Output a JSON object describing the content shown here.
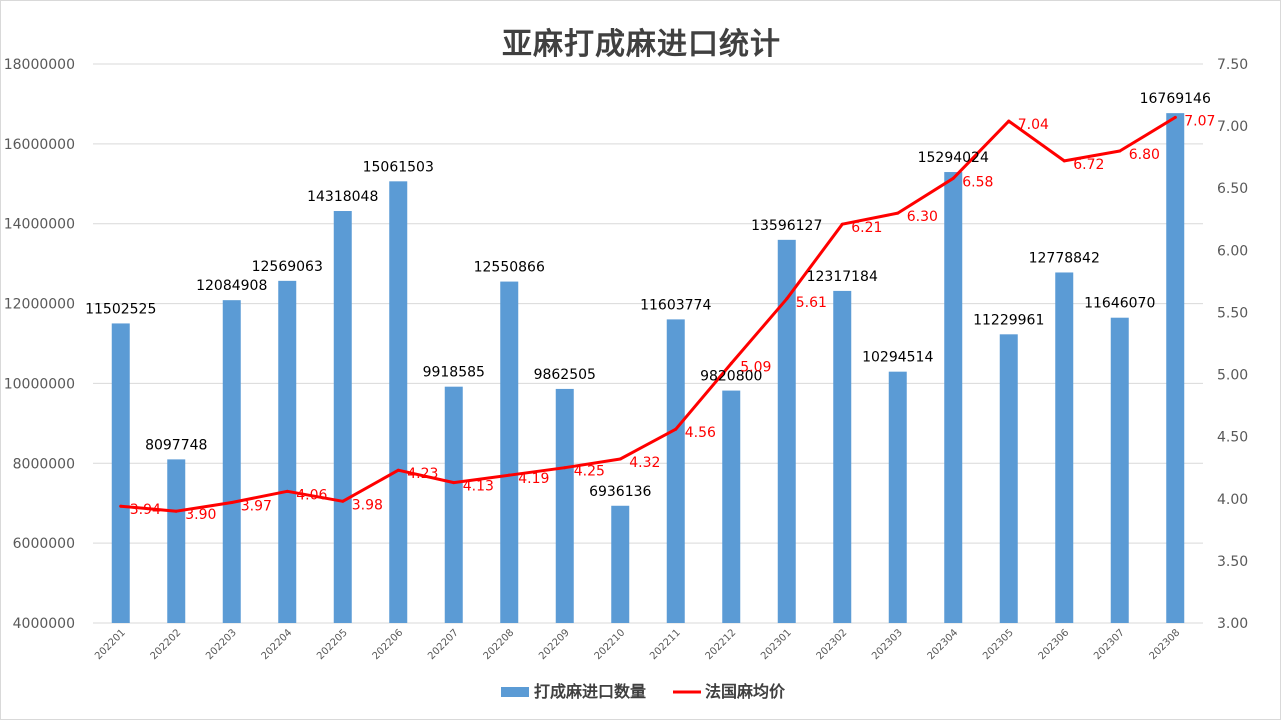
{
  "chart_data": {
    "type": "bar",
    "title": "亚麻打成麻进口统计",
    "categories": [
      "202201",
      "202202",
      "202203",
      "202204",
      "202205",
      "202206",
      "202207",
      "202208",
      "202209",
      "202210",
      "202211",
      "202212",
      "202301",
      "202302",
      "202303",
      "202304",
      "202305",
      "202306",
      "202307",
      "202308"
    ],
    "series": [
      {
        "name": "打成麻进口数量",
        "type": "bar",
        "axis": "left",
        "color": "#5b9bd5",
        "values": [
          11502525,
          8097748,
          12084908,
          12569063,
          14318048,
          15061503,
          9918585,
          12550866,
          9862505,
          6936136,
          11603774,
          9820800,
          13596127,
          12317184,
          10294514,
          15294024,
          11229961,
          12778842,
          11646070,
          16769146
        ],
        "labels": [
          "11502525",
          "8097748",
          "12084908",
          "12569063",
          "14318048",
          "15061503",
          "9918585",
          "12550866",
          "9862505",
          "6936136",
          "11603774",
          "9820800",
          "13596127",
          "12317184",
          "10294514",
          "15294024",
          "11229961",
          "12778842",
          "11646070",
          "16769146"
        ]
      },
      {
        "name": "法国麻均价",
        "type": "line",
        "axis": "right",
        "color": "#ff0000",
        "values": [
          3.94,
          3.9,
          3.97,
          4.06,
          3.98,
          4.23,
          4.13,
          4.19,
          4.25,
          4.32,
          4.56,
          5.09,
          5.61,
          6.21,
          6.3,
          6.58,
          7.04,
          6.72,
          6.8,
          7.07
        ],
        "labels": [
          "3.94",
          "3.90",
          "3.97",
          "4.06",
          "3.98",
          "4.23",
          "4.13",
          "4.19",
          "4.25",
          "4.32",
          "4.56",
          "5.09",
          "5.61",
          "6.21",
          "6.30",
          "6.58",
          "7.04",
          "6.72",
          "6.80",
          "7.07"
        ]
      }
    ],
    "left_axis": {
      "ylim": [
        4000000,
        18000000
      ],
      "ticks": [
        4000000,
        6000000,
        8000000,
        10000000,
        12000000,
        14000000,
        16000000,
        18000000
      ],
      "tick_labels": [
        "4000000",
        "6000000",
        "8000000",
        "10000000",
        "12000000",
        "14000000",
        "16000000",
        "18000000"
      ]
    },
    "right_axis": {
      "ylim": [
        3.0,
        7.5
      ],
      "ticks": [
        3.0,
        3.5,
        4.0,
        4.5,
        5.0,
        5.5,
        6.0,
        6.5,
        7.0,
        7.5
      ],
      "tick_labels": [
        "3.00",
        "3.50",
        "4.00",
        "4.50",
        "5.00",
        "5.50",
        "6.00",
        "6.50",
        "7.00",
        "7.50"
      ]
    },
    "grid": true,
    "legend": "bottom"
  }
}
